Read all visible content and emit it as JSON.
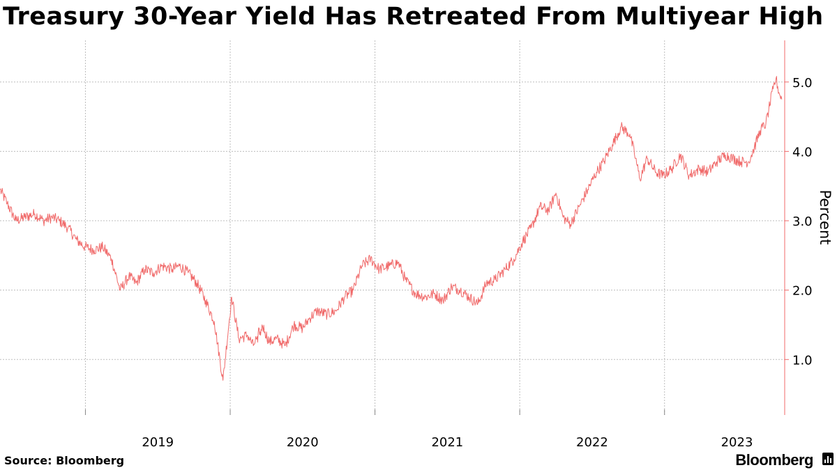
{
  "title": "Treasury 30-Year Yield Has Retreated From Multiyear High",
  "source": "Source: Bloomberg",
  "brand": "Bloomberg",
  "colors": {
    "line": "#f06a6a",
    "axis": "#f06a6a",
    "grid": "#bdbdbd",
    "text": "#000000"
  },
  "chart_data": {
    "type": "line",
    "title": "Treasury 30-Year Yield Has Retreated From Multiyear High",
    "xlabel": "",
    "ylabel": "Percent",
    "ylim": [
      0.2,
      5.6
    ],
    "xlim": [
      2018.41,
      2023.83
    ],
    "yticks": [
      1.0,
      2.0,
      3.0,
      4.0,
      5.0
    ],
    "ytick_labels": [
      "1.0",
      "2.0",
      "3.0",
      "4.0",
      "5.0"
    ],
    "xtick_labels": [
      "2019",
      "2020",
      "2021",
      "2022",
      "2023"
    ],
    "xtick_label_positions": [
      2019.5,
      2020.5,
      2021.5,
      2022.5,
      2023.5
    ],
    "x_gridlines": [
      2019.0,
      2020.0,
      2021.0,
      2022.0,
      2023.0
    ],
    "grid": true,
    "legend": "none",
    "series": [
      {
        "name": "Treasury 30-Year Yield",
        "x": [
          2018.41,
          2018.46,
          2018.52,
          2018.58,
          2018.65,
          2018.71,
          2018.77,
          2018.82,
          2018.88,
          2018.94,
          2019.0,
          2019.06,
          2019.12,
          2019.18,
          2019.24,
          2019.3,
          2019.35,
          2019.41,
          2019.47,
          2019.53,
          2019.6,
          2019.65,
          2019.71,
          2019.77,
          2019.83,
          2019.89,
          2019.95,
          2020.01,
          2020.06,
          2020.12,
          2020.16,
          2020.18,
          2020.19,
          2020.2,
          2020.21,
          2020.22,
          2020.24,
          2020.27,
          2020.32,
          2020.38,
          2020.44,
          2020.5,
          2020.55,
          2020.6,
          2020.67,
          2020.73,
          2020.79,
          2020.85,
          2020.91,
          2020.97,
          2021.03,
          2021.1,
          2021.16,
          2021.21,
          2021.28,
          2021.35,
          2021.41,
          2021.47,
          2021.53,
          2021.59,
          2021.65,
          2021.71,
          2021.77,
          2021.83,
          2021.9,
          2021.96,
          2022.02,
          2022.08,
          2022.14,
          2022.2,
          2022.25,
          2022.3,
          2022.35,
          2022.41,
          2022.47,
          2022.53,
          2022.58,
          2022.64,
          2022.7,
          2022.76,
          2022.8,
          2022.83,
          2022.88,
          2022.94,
          2022.99,
          2023.05,
          2023.11,
          2023.17,
          2023.24,
          2023.3,
          2023.36,
          2023.42,
          2023.47,
          2023.53,
          2023.58,
          2023.62,
          2023.66,
          2023.7,
          2023.72,
          2023.75,
          2023.77,
          2023.79,
          2023.81
        ],
        "values": [
          3.45,
          3.25,
          3.0,
          3.05,
          3.1,
          3.0,
          3.05,
          3.0,
          2.9,
          2.72,
          2.62,
          2.58,
          2.62,
          2.45,
          2.0,
          2.2,
          2.1,
          2.3,
          2.25,
          2.35,
          2.3,
          2.35,
          2.25,
          2.1,
          1.85,
          1.55,
          0.7,
          1.9,
          1.3,
          1.35,
          1.2,
          1.3,
          1.25,
          1.45,
          1.35,
          1.5,
          1.4,
          1.25,
          1.3,
          1.2,
          1.5,
          1.45,
          1.6,
          1.7,
          1.65,
          1.7,
          1.9,
          2.0,
          2.35,
          2.45,
          2.3,
          2.35,
          2.4,
          2.15,
          1.95,
          1.9,
          1.95,
          1.85,
          2.05,
          2.0,
          1.9,
          1.8,
          2.1,
          2.15,
          2.3,
          2.45,
          2.7,
          2.9,
          3.2,
          3.15,
          3.4,
          3.05,
          2.95,
          3.2,
          3.45,
          3.7,
          3.85,
          4.1,
          4.35,
          4.25,
          3.9,
          3.6,
          3.9,
          3.7,
          3.65,
          3.75,
          3.95,
          3.65,
          3.75,
          3.7,
          3.85,
          3.95,
          3.9,
          3.85,
          3.85,
          4.05,
          4.3,
          4.4,
          4.6,
          4.9,
          5.05,
          4.85,
          4.75
        ]
      }
    ]
  }
}
